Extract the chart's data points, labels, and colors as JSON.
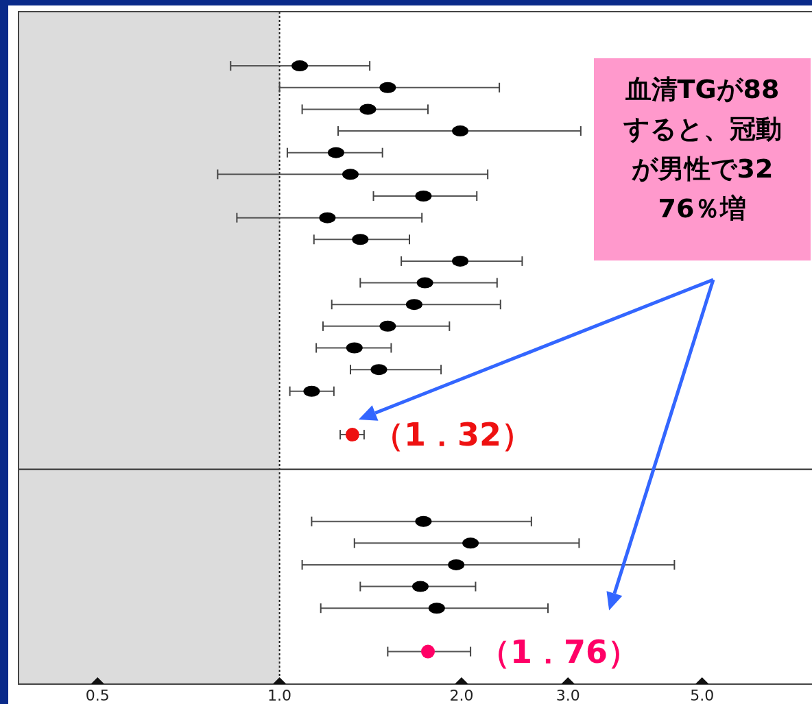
{
  "chart_data": {
    "type": "scatter",
    "orientation": "horizontal",
    "log": "x",
    "marker": "circle",
    "xlim": [
      0.37,
      7.6
    ],
    "xticks": [
      0.5,
      {
        "value": 1,
        "label": "1.0"
      },
      {
        "value": 2,
        "label": "2.0"
      },
      {
        "value": 3,
        "label": "3.0"
      },
      {
        "value": 5,
        "label": "5.0"
      }
    ],
    "tick_labels": "x",
    "categories": [
      null,
      null,
      null,
      null,
      null,
      null,
      null,
      null,
      null,
      null,
      null,
      null,
      null,
      null,
      null,
      null,
      null,
      null,
      null,
      null,
      null,
      null,
      null,
      null,
      null,
      null,
      null,
      null,
      null,
      null,
      null
    ],
    "series": [
      {
        "values": [
          null,
          null,
          1.08,
          1.51,
          1.4,
          1.99,
          1.24,
          1.31,
          1.73,
          1.2,
          1.36,
          1.99,
          1.74,
          1.67,
          1.51,
          1.33,
          1.46,
          1.13,
          null,
          1.32,
          null,
          null,
          null,
          1.73,
          2.07,
          1.96,
          1.71,
          1.82,
          null,
          1.76,
          null
        ],
        "errors": [
          null,
          null,
          [
            0.83,
            1.41
          ],
          [
            1.0,
            2.31
          ],
          [
            1.09,
            1.76
          ],
          [
            1.25,
            3.15
          ],
          [
            1.03,
            1.48
          ],
          [
            0.79,
            2.21
          ],
          [
            1.43,
            2.12
          ],
          [
            0.85,
            1.72
          ],
          [
            1.14,
            1.64
          ],
          [
            1.59,
            2.52
          ],
          [
            1.36,
            2.29
          ],
          [
            1.22,
            2.32
          ],
          [
            1.18,
            1.91
          ],
          [
            1.15,
            1.53
          ],
          [
            1.31,
            1.85
          ],
          [
            1.04,
            1.23
          ],
          null,
          [
            1.26,
            1.38
          ],
          null,
          null,
          null,
          [
            1.13,
            2.61
          ],
          [
            1.33,
            3.13
          ],
          [
            1.09,
            4.5
          ],
          [
            1.36,
            2.11
          ],
          [
            1.17,
            2.78
          ],
          null,
          [
            1.51,
            2.07
          ],
          null
        ],
        "colors": [
          null,
          null,
          "#000000",
          "#000000",
          "#000000",
          "#000000",
          "#000000",
          "#000000",
          "#000000",
          "#000000",
          "#000000",
          "#000000",
          "#000000",
          "#000000",
          "#000000",
          "#000000",
          "#000000",
          "#000000",
          null,
          "#ee1111",
          null,
          null,
          null,
          "#000000",
          "#000000",
          "#000000",
          "#000000",
          "#000000",
          null,
          "#ff0066",
          null
        ],
        "value_labels": [
          null,
          null,
          null,
          null,
          null,
          null,
          null,
          null,
          null,
          null,
          null,
          null,
          null,
          null,
          null,
          null,
          null,
          null,
          null,
          "（1．32）",
          null,
          null,
          null,
          null,
          null,
          null,
          null,
          null,
          null,
          "（1．76）",
          null
        ]
      }
    ],
    "bands": [
      {
        "axis": "x",
        "from": 0.37,
        "to": 1,
        "color": "#dcdcdc"
      }
    ],
    "ref_lines": [
      {
        "axis": "x",
        "value": 1,
        "line_style": "dotted"
      }
    ],
    "annotations": [
      "血清TGが88",
      "すると、冠動",
      "が男性で32",
      "76％増"
    ]
  }
}
